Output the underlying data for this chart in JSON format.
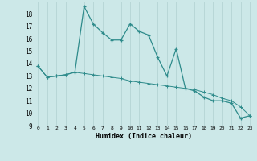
{
  "xlabel": "Humidex (Indice chaleur)",
  "x": [
    0,
    1,
    2,
    3,
    4,
    5,
    6,
    7,
    8,
    9,
    10,
    11,
    12,
    13,
    14,
    15,
    16,
    17,
    18,
    19,
    20,
    21,
    22,
    23
  ],
  "y_line1": [
    13.8,
    12.9,
    13.0,
    13.1,
    13.3,
    18.6,
    17.2,
    16.5,
    15.9,
    15.9,
    17.2,
    16.6,
    16.3,
    14.5,
    13.0,
    15.2,
    12.0,
    11.8,
    11.3,
    11.0,
    11.0,
    10.8,
    9.6,
    9.8
  ],
  "y_line2": [
    13.8,
    12.9,
    13.0,
    13.1,
    13.3,
    13.2,
    13.1,
    13.0,
    12.9,
    12.8,
    12.6,
    12.5,
    12.4,
    12.3,
    12.2,
    12.1,
    12.0,
    11.9,
    11.7,
    11.5,
    11.2,
    11.0,
    10.5,
    9.8
  ],
  "line_color": "#2e8b8b",
  "bg_color": "#cce8e8",
  "grid_color_major": "#b0d0d0",
  "grid_color_minor": "#d8eaea",
  "ylim": [
    9,
    19
  ],
  "yticks": [
    9,
    10,
    11,
    12,
    13,
    14,
    15,
    16,
    17,
    18
  ],
  "xlim": [
    -0.5,
    23.5
  ]
}
